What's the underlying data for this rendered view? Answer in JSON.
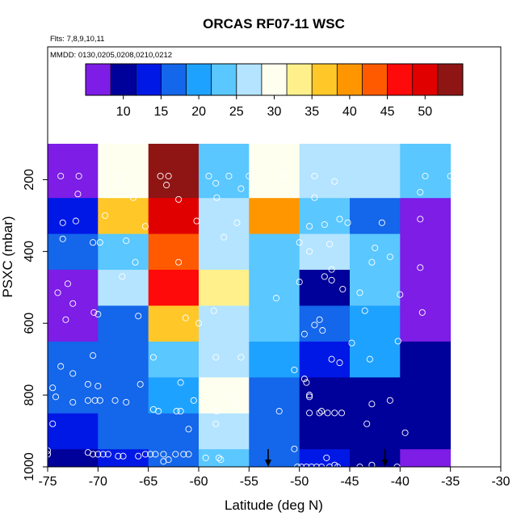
{
  "chart_data": {
    "type": "heatmap",
    "title": "ORCAS RF07-11 WSC",
    "notes": [
      "Flts: 7,8,9,10,11",
      "MMDD: 0130,0205,0208,0210,0212"
    ],
    "xlabel": "Latitude (deg N)",
    "ylabel": "PSXC (mbar)",
    "xlim": [
      -75,
      -30
    ],
    "ylim": [
      1000,
      100
    ],
    "x_ticks": [
      -75,
      -70,
      -65,
      -60,
      -55,
      -50,
      -45,
      -40,
      -35,
      -30
    ],
    "x_tick_labels": [
      "-75",
      "-70",
      "-65",
      "-60",
      "-55",
      "-50",
      "-45",
      "-40",
      "-35",
      "-30"
    ],
    "y_ticks": [
      200,
      400,
      600,
      800,
      1000
    ],
    "y_tick_labels": [
      "200",
      "400",
      "600",
      "800",
      "1000"
    ],
    "colorbar": {
      "min": 5,
      "max": 55,
      "ticks": [
        10,
        15,
        20,
        25,
        30,
        35,
        40,
        45,
        50
      ],
      "tick_labels": [
        "10",
        "15",
        "20",
        "25",
        "30",
        "35",
        "40",
        "45",
        "50"
      ],
      "colors": [
        "#7d1de6",
        "#00009a",
        "#0018e6",
        "#1466ea",
        "#1ea2ff",
        "#5ac7ff",
        "#b4e4ff",
        "#fffff0",
        "#fff08c",
        "#ffc828",
        "#ff9600",
        "#ff5a00",
        "#ff0a0a",
        "#e00000",
        "#8f1515"
      ]
    },
    "x_bin_edges": [
      -75,
      -70,
      -65,
      -60,
      -55,
      -50,
      -45,
      -40,
      -35
    ],
    "y_bin_edges": [
      1000,
      950,
      850,
      750,
      650,
      550,
      450,
      350,
      250,
      100
    ],
    "grid_values": [
      [
        11,
        13,
        16,
        22,
        16,
        12,
        9,
        8
      ],
      [
        14,
        15,
        17,
        26,
        17,
        11,
        10,
        10
      ],
      [
        16,
        15,
        19,
        31,
        18,
        10,
        11,
        9
      ],
      [
        15,
        17,
        22,
        28,
        20,
        12,
        21,
        9
      ],
      [
        6,
        18,
        37,
        27,
        22,
        18,
        20,
        8
      ],
      [
        7,
        25,
        45,
        34,
        23,
        10,
        22,
        7
      ],
      [
        17,
        22,
        43,
        28,
        22,
        27,
        22,
        7
      ],
      [
        14,
        38,
        51,
        25,
        41,
        23,
        17,
        6
      ],
      [
        7,
        29,
        53,
        23,
        31,
        28,
        26,
        24
      ]
    ],
    "samples": [
      [
        -73.7,
        190
      ],
      [
        -71.9,
        190
      ],
      [
        -68.0,
        190
      ],
      [
        -63.8,
        190
      ],
      [
        -63.0,
        190
      ],
      [
        -59.0,
        190
      ],
      [
        -57.0,
        190
      ],
      [
        -55.0,
        190
      ],
      [
        -51.5,
        190
      ],
      [
        -48.5,
        190
      ],
      [
        -46.5,
        205
      ],
      [
        -37.5,
        190
      ],
      [
        -35.0,
        190
      ],
      [
        -67.7,
        215
      ],
      [
        -63.2,
        215
      ],
      [
        -58.3,
        210
      ],
      [
        -55.8,
        225
      ],
      [
        -72.0,
        240
      ],
      [
        -66.5,
        250
      ],
      [
        -62.0,
        255
      ],
      [
        -58.2,
        250
      ],
      [
        -50.5,
        240
      ],
      [
        -48.5,
        250
      ],
      [
        -38.0,
        235
      ],
      [
        -73.5,
        320
      ],
      [
        -72.2,
        315
      ],
      [
        -69.3,
        300
      ],
      [
        -65.3,
        330
      ],
      [
        -60.2,
        315
      ],
      [
        -56.2,
        320
      ],
      [
        -49.0,
        330
      ],
      [
        -47.5,
        325
      ],
      [
        -46.0,
        310
      ],
      [
        -45.2,
        320
      ],
      [
        -41.8,
        320
      ],
      [
        -38.0,
        310
      ],
      [
        -73.5,
        365
      ],
      [
        -70.5,
        375
      ],
      [
        -69.8,
        375
      ],
      [
        -67.2,
        370
      ],
      [
        -57.5,
        360
      ],
      [
        -50.0,
        375
      ],
      [
        -47.0,
        380
      ],
      [
        -42.5,
        390
      ],
      [
        -49.0,
        400
      ],
      [
        -66.3,
        430
      ],
      [
        -62.0,
        430
      ],
      [
        -46.8,
        450
      ],
      [
        -42.8,
        430
      ],
      [
        -41.0,
        415
      ],
      [
        -38.0,
        445
      ],
      [
        -73.0,
        490
      ],
      [
        -74.0,
        515
      ],
      [
        -67.6,
        470
      ],
      [
        -50.0,
        485
      ],
      [
        -47.5,
        470
      ],
      [
        -46.8,
        480
      ],
      [
        -45.7,
        505
      ],
      [
        -44.0,
        515
      ],
      [
        -40.0,
        520
      ],
      [
        -72.5,
        545
      ],
      [
        -70.4,
        570
      ],
      [
        -70.0,
        575
      ],
      [
        -66.0,
        580
      ],
      [
        -61.3,
        585
      ],
      [
        -58.5,
        565
      ],
      [
        -52.3,
        530
      ],
      [
        -43.5,
        565
      ],
      [
        -37.8,
        570
      ],
      [
        -73.2,
        590
      ],
      [
        -48.0,
        590
      ],
      [
        -60.0,
        600
      ],
      [
        -48.5,
        605
      ],
      [
        -47.7,
        620
      ],
      [
        -49.5,
        630
      ],
      [
        -44.8,
        655
      ],
      [
        -40.2,
        650
      ],
      [
        -73.7,
        720
      ],
      [
        -70.5,
        690
      ],
      [
        -64.5,
        695
      ],
      [
        -58.3,
        695
      ],
      [
        -55.8,
        695
      ],
      [
        -50.5,
        730
      ],
      [
        -46.8,
        700
      ],
      [
        -46.0,
        710
      ],
      [
        -43.0,
        700
      ],
      [
        -74.5,
        780
      ],
      [
        -72.5,
        740
      ],
      [
        -71.0,
        770
      ],
      [
        -70.0,
        775
      ],
      [
        -65.8,
        770
      ],
      [
        -61.8,
        765
      ],
      [
        -49.5,
        755
      ],
      [
        -49.3,
        765
      ],
      [
        -49.0,
        805
      ],
      [
        -74.2,
        805
      ],
      [
        -72.5,
        820
      ],
      [
        -71.0,
        815
      ],
      [
        -70.3,
        815
      ],
      [
        -69.8,
        815
      ],
      [
        -68.3,
        815
      ],
      [
        -67.2,
        820
      ],
      [
        -60.5,
        815
      ],
      [
        -56.2,
        820
      ],
      [
        -49.0,
        800
      ],
      [
        -42.8,
        825
      ],
      [
        -41.0,
        815
      ],
      [
        -64.5,
        840
      ],
      [
        -64.0,
        845
      ],
      [
        -62.2,
        845
      ],
      [
        -61.8,
        845
      ],
      [
        -58.2,
        845
      ],
      [
        -52.0,
        845
      ],
      [
        -49.0,
        850
      ],
      [
        -48.0,
        850
      ],
      [
        -47.8,
        845
      ],
      [
        -47.2,
        850
      ],
      [
        -46.5,
        850
      ],
      [
        -45.8,
        850
      ],
      [
        -74.5,
        880
      ],
      [
        -61.0,
        895
      ],
      [
        -58.3,
        880
      ],
      [
        -43.3,
        880
      ],
      [
        -39.5,
        905
      ],
      [
        -75.0,
        955
      ],
      [
        -75.0,
        965
      ],
      [
        -71.0,
        960
      ],
      [
        -70.5,
        965
      ],
      [
        -70.0,
        965
      ],
      [
        -69.5,
        965
      ],
      [
        -69.0,
        965
      ],
      [
        -68.0,
        970
      ],
      [
        -67.5,
        970
      ],
      [
        -66.0,
        970
      ],
      [
        -65.3,
        965
      ],
      [
        -64.8,
        965
      ],
      [
        -64.3,
        965
      ],
      [
        -63.5,
        965
      ],
      [
        -62.3,
        965
      ],
      [
        -61.5,
        965
      ],
      [
        -61.0,
        965
      ],
      [
        -59.3,
        975
      ],
      [
        -58.0,
        975
      ],
      [
        -57.8,
        980
      ],
      [
        -63.5,
        985
      ],
      [
        -63.0,
        980
      ],
      [
        -50.5,
        950
      ],
      [
        -50.2,
        1000
      ],
      [
        -49.8,
        1000
      ],
      [
        -49.3,
        1000
      ],
      [
        -48.8,
        1000
      ],
      [
        -48.3,
        1000
      ],
      [
        -47.8,
        1000
      ],
      [
        -47.0,
        1000
      ],
      [
        -46.5,
        995
      ],
      [
        -46.2,
        1000
      ],
      [
        -47.3,
        975
      ],
      [
        -44.0,
        1000
      ],
      [
        -42.8,
        995
      ],
      [
        -40.3,
        1000
      ]
    ],
    "arrow_markers_lat": [
      -53.1,
      -41.5
    ]
  }
}
